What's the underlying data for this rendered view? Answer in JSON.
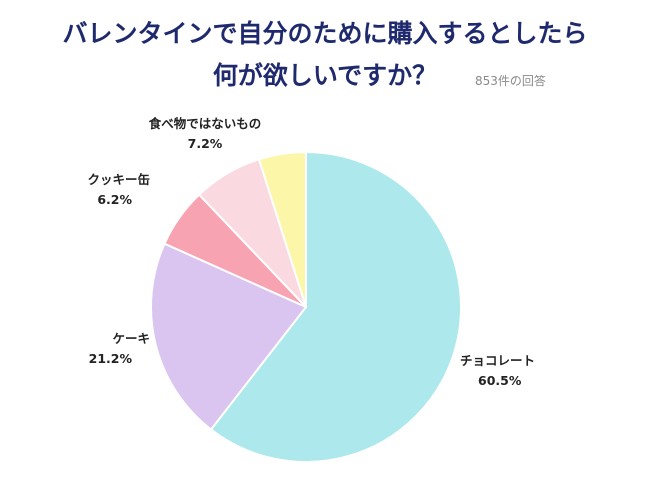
{
  "title_line1": "バレンタインで自分のために購入するとしたら",
  "title_line2": "何が欲しいですか？",
  "note": "853件の回答",
  "chart_data": {
    "type": "pie",
    "title": "バレンタインで自分のために購入するとしたら何が欲しいですか？",
    "slices": [
      {
        "label": "チョコレート",
        "value": 60.5,
        "value_label": "60.5%",
        "color": "#ade8ec"
      },
      {
        "label": "ケーキ",
        "value": 21.2,
        "value_label": "21.2%",
        "color": "#d9c5f0"
      },
      {
        "label": "クッキー缶",
        "value": 6.2,
        "value_label": "6.2%",
        "color": "#f8a3b2"
      },
      {
        "label": "食べ物ではないもの",
        "value": 7.2,
        "value_label": "7.2%",
        "color": "#fbd9e0"
      },
      {
        "label": "",
        "value": 4.9,
        "value_label": "",
        "color": "#fbf6a8"
      }
    ],
    "start": "12 o'clock",
    "direction": "clockwise"
  }
}
